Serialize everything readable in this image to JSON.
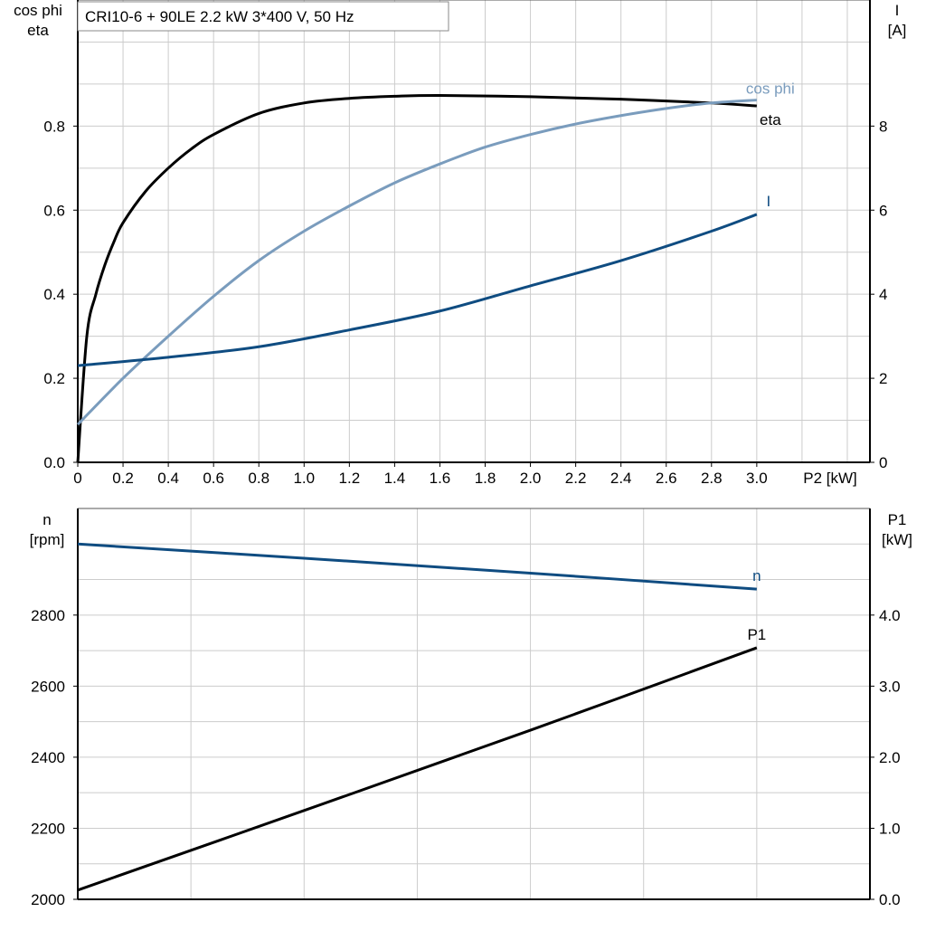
{
  "title": "CRI10-6 + 90LE   2.2 kW   3*400 V, 50 Hz",
  "colors": {
    "eta": "#000000",
    "cos_phi": "#7a9cbd",
    "I": "#0f4c81",
    "n": "#0f4c81",
    "P1": "#000000",
    "grid": "#cccccc"
  },
  "chart_data": [
    {
      "type": "line",
      "xlabel": "P2 [kW]",
      "ylabel_left": [
        "cos phi",
        "eta"
      ],
      "ylabel_right": [
        "I",
        "[A]"
      ],
      "xlim": [
        0,
        3.5
      ],
      "ylim_left": [
        0,
        1.1
      ],
      "ylim_right": [
        0,
        11
      ],
      "grid": true,
      "x_ticks": [
        "0",
        "0.2",
        "0.4",
        "0.6",
        "0.8",
        "1.0",
        "1.2",
        "1.4",
        "1.6",
        "1.8",
        "2.0",
        "2.2",
        "2.4",
        "2.6",
        "2.8",
        "3.0"
      ],
      "y_left_ticks": [
        "0.0",
        "0.2",
        "0.4",
        "0.6",
        "0.8"
      ],
      "y_right_ticks": [
        "0",
        "2",
        "4",
        "6",
        "8"
      ],
      "series": [
        {
          "name": "eta",
          "axis": "left",
          "color_key": "eta",
          "x": [
            0,
            0.04,
            0.08,
            0.12,
            0.16,
            0.2,
            0.3,
            0.4,
            0.5,
            0.6,
            0.8,
            1.0,
            1.2,
            1.4,
            1.6,
            2.0,
            2.4,
            2.8,
            3.0
          ],
          "y": [
            0,
            0.3,
            0.4,
            0.47,
            0.525,
            0.57,
            0.645,
            0.7,
            0.745,
            0.78,
            0.83,
            0.855,
            0.866,
            0.871,
            0.873,
            0.87,
            0.864,
            0.855,
            0.848
          ]
        },
        {
          "name": "cos phi",
          "axis": "left",
          "color_key": "cos_phi",
          "x": [
            0,
            0.2,
            0.4,
            0.6,
            0.8,
            1.0,
            1.2,
            1.4,
            1.6,
            1.8,
            2.0,
            2.2,
            2.4,
            2.6,
            2.8,
            3.0
          ],
          "y": [
            0.09,
            0.2,
            0.3,
            0.395,
            0.48,
            0.55,
            0.61,
            0.665,
            0.71,
            0.75,
            0.78,
            0.805,
            0.825,
            0.842,
            0.855,
            0.862
          ]
        },
        {
          "name": "I",
          "axis": "right",
          "color_key": "I",
          "x": [
            0,
            0.4,
            0.8,
            1.2,
            1.6,
            2.0,
            2.4,
            2.8,
            3.0
          ],
          "y": [
            2.3,
            2.5,
            2.75,
            3.15,
            3.6,
            4.2,
            4.8,
            5.5,
            5.9
          ]
        }
      ]
    },
    {
      "type": "line",
      "ylabel_left": [
        "n",
        "[rpm]"
      ],
      "ylabel_right": [
        "P1",
        "[kW]"
      ],
      "xlim": [
        0,
        3.5
      ],
      "ylim_left": [
        2000,
        3100
      ],
      "ylim_right": [
        0,
        5.5
      ],
      "grid": true,
      "y_left_ticks": [
        "2000",
        "2200",
        "2400",
        "2600",
        "2800"
      ],
      "y_right_ticks": [
        "0.0",
        "1.0",
        "2.0",
        "3.0",
        "4.0"
      ],
      "series": [
        {
          "name": "n",
          "axis": "left",
          "color_key": "n",
          "x": [
            0,
            1.0,
            2.0,
            3.0
          ],
          "y": [
            3000,
            2960,
            2918,
            2873
          ]
        },
        {
          "name": "P1",
          "axis": "right",
          "color_key": "P1",
          "x": [
            0,
            1.0,
            2.0,
            3.0
          ],
          "y": [
            0.13,
            1.25,
            2.38,
            3.54
          ]
        }
      ]
    }
  ]
}
